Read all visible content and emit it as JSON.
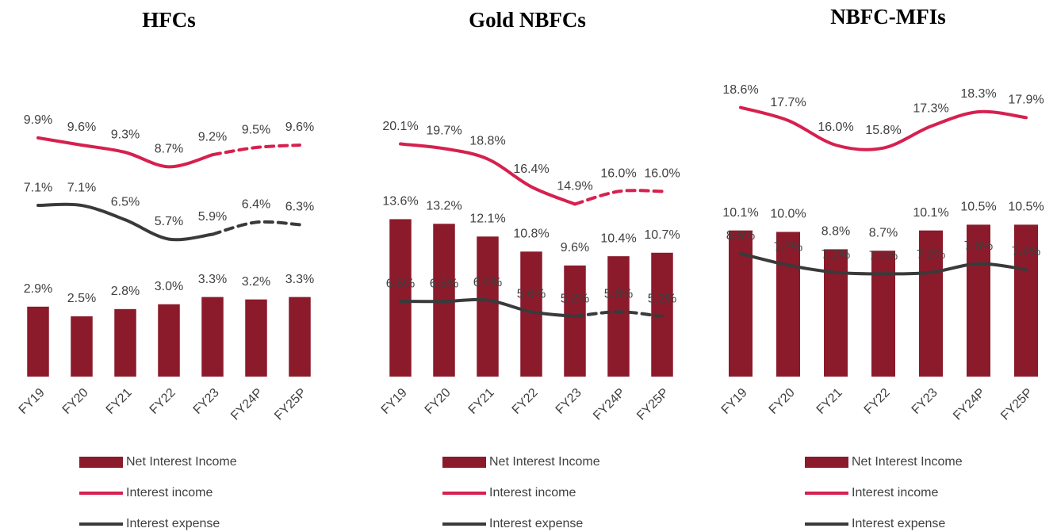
{
  "chart_data": [
    {
      "type": "bar",
      "title": "HFCs",
      "categories": [
        "FY19",
        "FY20",
        "FY21",
        "FY22",
        "FY23",
        "FY24P",
        "FY25P"
      ],
      "ylim": [
        0,
        12
      ],
      "series": [
        {
          "name": "Net Interest Income",
          "type": "bar",
          "color": "#8b1a2b",
          "values": [
            2.9,
            2.5,
            2.8,
            3.0,
            3.3,
            3.2,
            3.3
          ],
          "value_labels": [
            "2.9%",
            "2.5%",
            "2.8%",
            "3.0%",
            "3.3%",
            "3.2%",
            "3.3%"
          ]
        },
        {
          "name": "Interest income",
          "type": "line",
          "color": "#d6204e",
          "dashed_from": "FY23",
          "values": [
            9.9,
            9.6,
            9.3,
            8.7,
            9.2,
            9.5,
            9.6
          ],
          "value_labels": [
            "9.9%",
            "9.6%",
            "9.3%",
            "8.7%",
            "9.2%",
            "9.5%",
            "9.6%"
          ]
        },
        {
          "name": "Interest expense",
          "type": "line",
          "color": "#3a3a3a",
          "dashed_from": "FY23",
          "values": [
            7.1,
            7.1,
            6.5,
            5.7,
            5.9,
            6.4,
            6.3
          ],
          "value_labels": [
            "7.1%",
            "7.1%",
            "6.5%",
            "5.7%",
            "5.9%",
            "6.4%",
            "6.3%"
          ]
        }
      ]
    },
    {
      "type": "bar",
      "title": "Gold NBFCs",
      "categories": [
        "FY19",
        "FY20",
        "FY21",
        "FY22",
        "FY23",
        "FY24P",
        "FY25P"
      ],
      "ylim": [
        0,
        25
      ],
      "series": [
        {
          "name": "Net Interest Income",
          "type": "bar",
          "color": "#8b1a2b",
          "values": [
            13.6,
            13.2,
            12.1,
            10.8,
            9.6,
            10.4,
            10.7
          ],
          "value_labels": [
            "13.6%",
            "13.2%",
            "12.1%",
            "10.8%",
            "9.6%",
            "10.4%",
            "10.7%"
          ]
        },
        {
          "name": "Interest income",
          "type": "line",
          "color": "#d6204e",
          "dashed_from": "FY23",
          "values": [
            20.1,
            19.7,
            18.8,
            16.4,
            14.9,
            16.0,
            16.0
          ],
          "value_labels": [
            "20.1%",
            "19.7%",
            "18.8%",
            "16.4%",
            "14.9%",
            "16.0%",
            "16.0%"
          ]
        },
        {
          "name": "Interest expense",
          "type": "line",
          "color": "#3a3a3a",
          "dashed_from": "FY23",
          "values": [
            6.5,
            6.5,
            6.6,
            5.6,
            5.2,
            5.6,
            5.2
          ],
          "value_labels": [
            "6.5%",
            "6.5%",
            "6.6%",
            "5.6%",
            "5.2%",
            "5.6%",
            "5.2%"
          ]
        }
      ]
    },
    {
      "type": "bar",
      "title": "NBFC-MFIs",
      "categories": [
        "FY19",
        "FY20",
        "FY21",
        "FY22",
        "FY23",
        "FY24P",
        "FY25P"
      ],
      "ylim": [
        0,
        20
      ],
      "series": [
        {
          "name": "Net Interest Income",
          "type": "bar",
          "color": "#8b1a2b",
          "values": [
            10.1,
            10.0,
            8.8,
            8.7,
            10.1,
            10.5,
            10.5
          ],
          "value_labels": [
            "10.1%",
            "10.0%",
            "8.8%",
            "8.7%",
            "10.1%",
            "10.5%",
            "10.5%"
          ]
        },
        {
          "name": "Interest income",
          "type": "line",
          "color": "#d6204e",
          "values": [
            18.6,
            17.7,
            16.0,
            15.8,
            17.3,
            18.3,
            17.9
          ],
          "value_labels": [
            "18.6%",
            "17.7%",
            "16.0%",
            "15.8%",
            "17.3%",
            "18.3%",
            "17.9%"
          ]
        },
        {
          "name": "Interest expense",
          "type": "line",
          "color": "#3a3a3a",
          "values": [
            8.5,
            7.7,
            7.2,
            7.1,
            7.2,
            7.8,
            7.4
          ],
          "value_labels": [
            "8.5%",
            "7.7%",
            "7.2%",
            "7.1%",
            "7.2%",
            "7.8%",
            "7.4%"
          ]
        }
      ]
    }
  ]
}
